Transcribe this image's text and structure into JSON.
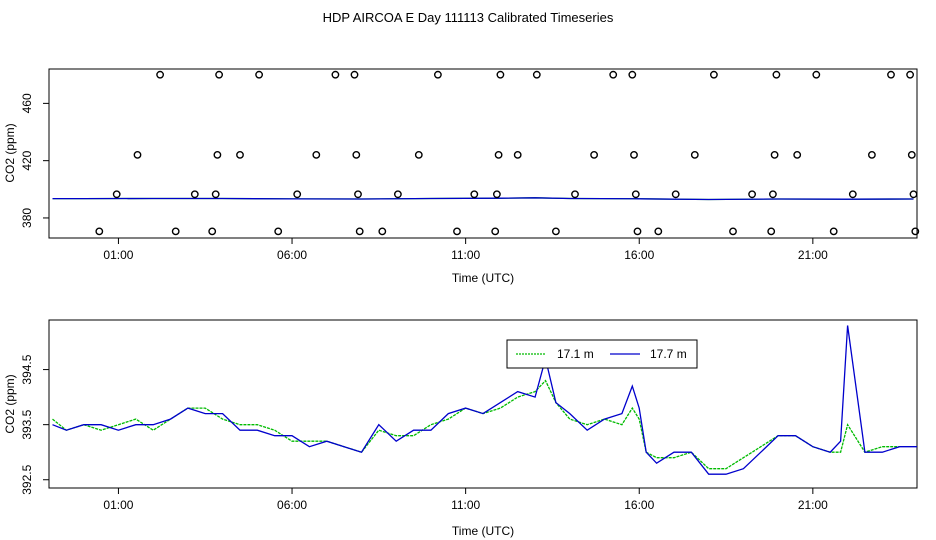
{
  "figure": {
    "title": "HDP AIRCOA E  Day 111113  Calibrated Timeseries"
  },
  "chart_data": [
    {
      "type": "scatter",
      "xlabel": "Time (UTC)",
      "ylabel": "CO2 (ppm)",
      "xlim": [
        -1.0,
        24.0
      ],
      "ylim": [
        366,
        484
      ],
      "x_ticks": [
        1,
        6,
        11,
        16,
        21
      ],
      "x_tick_labels": [
        "01:00",
        "06:00",
        "11:00",
        "16:00",
        "21:00"
      ],
      "y_ticks": [
        380,
        420,
        460
      ],
      "y_tick_labels": [
        "380",
        "420",
        "460"
      ],
      "grid": false,
      "colors": {
        "17.1 m": "#00bb00",
        "17.7 m": "#0000cc",
        "outliers": "#000000"
      },
      "outlier_points": [
        {
          "x": 0.45,
          "y": 370.6
        },
        {
          "x": 0.95,
          "y": 396.5
        },
        {
          "x": 1.55,
          "y": 424
        },
        {
          "x": 2.2,
          "y": 480
        },
        {
          "x": 2.65,
          "y": 370.6
        },
        {
          "x": 3.2,
          "y": 396.5
        },
        {
          "x": 3.7,
          "y": 370.6
        },
        {
          "x": 3.8,
          "y": 396.5
        },
        {
          "x": 3.85,
          "y": 424
        },
        {
          "x": 3.9,
          "y": 480
        },
        {
          "x": 4.5,
          "y": 424
        },
        {
          "x": 5.05,
          "y": 480
        },
        {
          "x": 5.6,
          "y": 370.6
        },
        {
          "x": 6.15,
          "y": 396.5
        },
        {
          "x": 6.7,
          "y": 424
        },
        {
          "x": 7.25,
          "y": 480
        },
        {
          "x": 7.8,
          "y": 480
        },
        {
          "x": 7.85,
          "y": 424
        },
        {
          "x": 7.9,
          "y": 396.5
        },
        {
          "x": 7.95,
          "y": 370.6
        },
        {
          "x": 8.6,
          "y": 370.6
        },
        {
          "x": 9.05,
          "y": 396.5
        },
        {
          "x": 9.65,
          "y": 424
        },
        {
          "x": 10.2,
          "y": 480
        },
        {
          "x": 10.75,
          "y": 370.6
        },
        {
          "x": 11.25,
          "y": 396.5
        },
        {
          "x": 11.85,
          "y": 370.6
        },
        {
          "x": 11.9,
          "y": 396.5
        },
        {
          "x": 11.95,
          "y": 424
        },
        {
          "x": 12.0,
          "y": 480
        },
        {
          "x": 12.5,
          "y": 424
        },
        {
          "x": 13.05,
          "y": 480
        },
        {
          "x": 13.6,
          "y": 370.6
        },
        {
          "x": 14.15,
          "y": 396.5
        },
        {
          "x": 14.7,
          "y": 424
        },
        {
          "x": 15.25,
          "y": 480
        },
        {
          "x": 15.8,
          "y": 480
        },
        {
          "x": 15.85,
          "y": 424
        },
        {
          "x": 15.9,
          "y": 396.5
        },
        {
          "x": 15.95,
          "y": 370.6
        },
        {
          "x": 16.55,
          "y": 370.6
        },
        {
          "x": 17.05,
          "y": 396.5
        },
        {
          "x": 17.6,
          "y": 424
        },
        {
          "x": 18.15,
          "y": 480
        },
        {
          "x": 18.7,
          "y": 370.6
        },
        {
          "x": 19.25,
          "y": 396.5
        },
        {
          "x": 19.8,
          "y": 370.6
        },
        {
          "x": 19.85,
          "y": 396.5
        },
        {
          "x": 19.9,
          "y": 424
        },
        {
          "x": 19.95,
          "y": 480
        },
        {
          "x": 20.55,
          "y": 424
        },
        {
          "x": 21.1,
          "y": 480
        },
        {
          "x": 21.6,
          "y": 370.6
        },
        {
          "x": 22.15,
          "y": 396.5
        },
        {
          "x": 22.7,
          "y": 424
        },
        {
          "x": 23.25,
          "y": 480
        },
        {
          "x": 23.8,
          "y": 480
        },
        {
          "x": 23.85,
          "y": 424
        },
        {
          "x": 23.9,
          "y": 396.5
        },
        {
          "x": 23.95,
          "y": 370.6
        }
      ],
      "series": [
        {
          "x": [
            -0.9,
            0,
            2,
            4,
            6,
            8,
            10,
            12,
            13,
            14,
            16,
            18,
            20,
            22,
            23.9
          ],
          "values": [
            393.5,
            393.5,
            393.6,
            393.6,
            393.3,
            393.2,
            393.6,
            393.8,
            394.1,
            393.6,
            393.4,
            392.9,
            393.2,
            393.1,
            393.2
          ]
        },
        {
          "x": [
            -0.9,
            0,
            2,
            4,
            6,
            8,
            10,
            12,
            13,
            14,
            16,
            18,
            20,
            22,
            23.9
          ],
          "values": [
            393.5,
            393.5,
            393.6,
            393.6,
            393.3,
            393.2,
            393.6,
            393.8,
            394.1,
            393.6,
            393.4,
            392.9,
            393.2,
            393.1,
            393.2
          ]
        }
      ]
    },
    {
      "type": "line",
      "xlabel": "Time (UTC)",
      "ylabel": "CO2 (ppm)",
      "xlim": [
        -1.0,
        24.0
      ],
      "ylim": [
        392.35,
        395.4
      ],
      "x_ticks": [
        1,
        6,
        11,
        16,
        21
      ],
      "x_tick_labels": [
        "01:00",
        "06:00",
        "11:00",
        "16:00",
        "21:00"
      ],
      "y_ticks": [
        392.5,
        393.5,
        394.5
      ],
      "y_tick_labels": [
        "392.5",
        "393.5",
        "394.5"
      ],
      "grid": false,
      "legend": {
        "placement": "top-center"
      },
      "series": [
        {
          "name": "17.1 m",
          "color": "#00bb00",
          "x": [
            -0.9,
            -0.5,
            0.0,
            0.5,
            1.0,
            1.5,
            2.0,
            2.5,
            3.0,
            3.5,
            4.0,
            4.5,
            5.0,
            5.5,
            6.0,
            6.5,
            7.0,
            7.5,
            8.0,
            8.5,
            9.0,
            9.5,
            10.0,
            10.5,
            11.0,
            11.5,
            12.0,
            12.5,
            13.0,
            13.3,
            13.6,
            14.0,
            14.5,
            15.0,
            15.5,
            15.8,
            16.0,
            16.2,
            16.5,
            17.0,
            17.5,
            18.0,
            18.5,
            19.0,
            19.5,
            20.0,
            20.5,
            21.0,
            21.5,
            21.8,
            22.0,
            22.5,
            23.0,
            23.5
          ],
          "values": [
            393.6,
            393.4,
            393.5,
            393.4,
            393.5,
            393.6,
            393.4,
            393.6,
            393.8,
            393.8,
            393.6,
            393.5,
            393.5,
            393.4,
            393.2,
            393.2,
            393.2,
            393.1,
            393.0,
            393.4,
            393.3,
            393.3,
            393.5,
            393.6,
            393.8,
            393.7,
            393.8,
            394.0,
            394.1,
            394.3,
            393.9,
            393.6,
            393.5,
            393.6,
            393.5,
            393.8,
            393.6,
            393.0,
            392.9,
            392.9,
            393.0,
            392.7,
            392.7,
            392.9,
            393.1,
            393.3,
            393.3,
            393.1,
            393.0,
            393.0,
            393.5,
            393.0,
            393.1,
            393.1
          ]
        },
        {
          "name": "17.7 m",
          "color": "#0000cc",
          "x": [
            -0.9,
            -0.5,
            0.0,
            0.5,
            1.0,
            1.5,
            2.0,
            2.5,
            3.0,
            3.5,
            4.0,
            4.5,
            5.0,
            5.5,
            6.0,
            6.5,
            7.0,
            7.5,
            8.0,
            8.5,
            9.0,
            9.5,
            10.0,
            10.5,
            11.0,
            11.5,
            12.0,
            12.5,
            13.0,
            13.3,
            13.6,
            14.0,
            14.5,
            15.0,
            15.5,
            15.8,
            16.0,
            16.2,
            16.5,
            17.0,
            17.5,
            18.0,
            18.5,
            19.0,
            19.5,
            20.0,
            20.5,
            21.0,
            21.5,
            21.8,
            22.0,
            22.5,
            23.0,
            23.5,
            24.0
          ],
          "values": [
            393.5,
            393.4,
            393.5,
            393.5,
            393.4,
            393.5,
            393.5,
            393.6,
            393.8,
            393.7,
            393.7,
            393.4,
            393.4,
            393.3,
            393.3,
            393.1,
            393.2,
            393.1,
            393.0,
            393.5,
            393.2,
            393.4,
            393.4,
            393.7,
            393.8,
            393.7,
            393.9,
            394.1,
            394.0,
            394.7,
            393.9,
            393.7,
            393.4,
            393.6,
            393.7,
            394.2,
            393.8,
            393.0,
            392.8,
            393.0,
            393.0,
            392.6,
            392.6,
            392.7,
            393.0,
            393.3,
            393.3,
            393.1,
            393.0,
            393.2,
            395.3,
            393.0,
            393.0,
            393.1,
            393.1
          ]
        }
      ]
    }
  ]
}
